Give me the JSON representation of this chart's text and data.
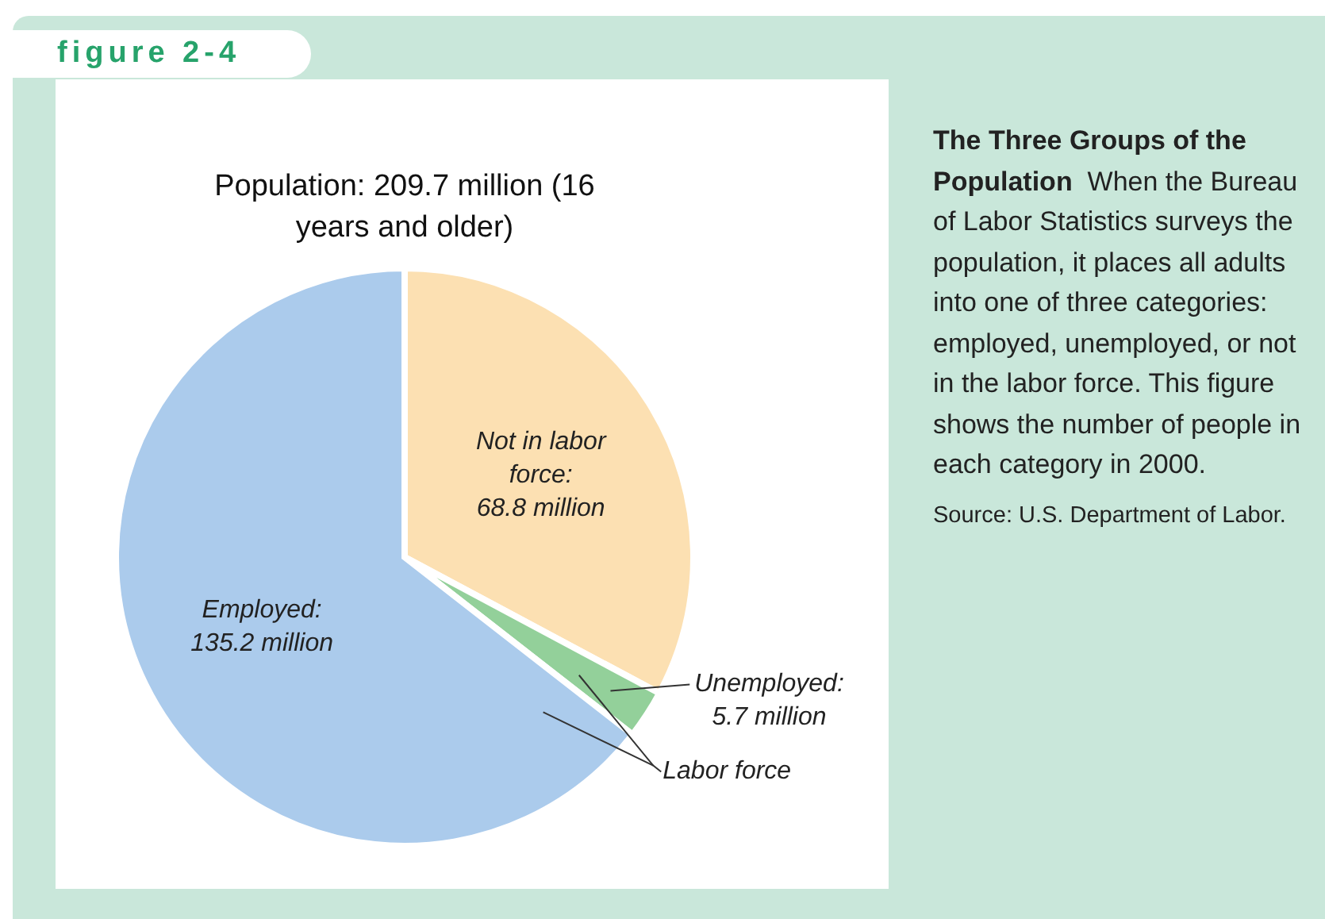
{
  "chart_data": {
    "type": "pie",
    "title": "Population: 209.7 million (16 years and older)",
    "subtitle": "The Three Groups of the Population",
    "categories": [
      null,
      null,
      null
    ],
    "values": [
      68.8,
      5.7,
      135.2
    ],
    "value_labels": [
      "Not in labor force: 68.8 million",
      "Unemployed: 5.7 million",
      "Employed: 135.2 million"
    ],
    "colors": [
      "#fce0b2",
      "#93d09a",
      "#abcbec"
    ],
    "annotations": [
      "figure 2-4",
      "When the Bureau of Labor Statistics surveys the population, it places all adults into one of three categories: employed, unemployed, or not in the labor force. This figure shows the number of people in each category in 2000.",
      "Source: U.S. Department of Labor.",
      "Labor force"
    ],
    "legend": false
  }
}
